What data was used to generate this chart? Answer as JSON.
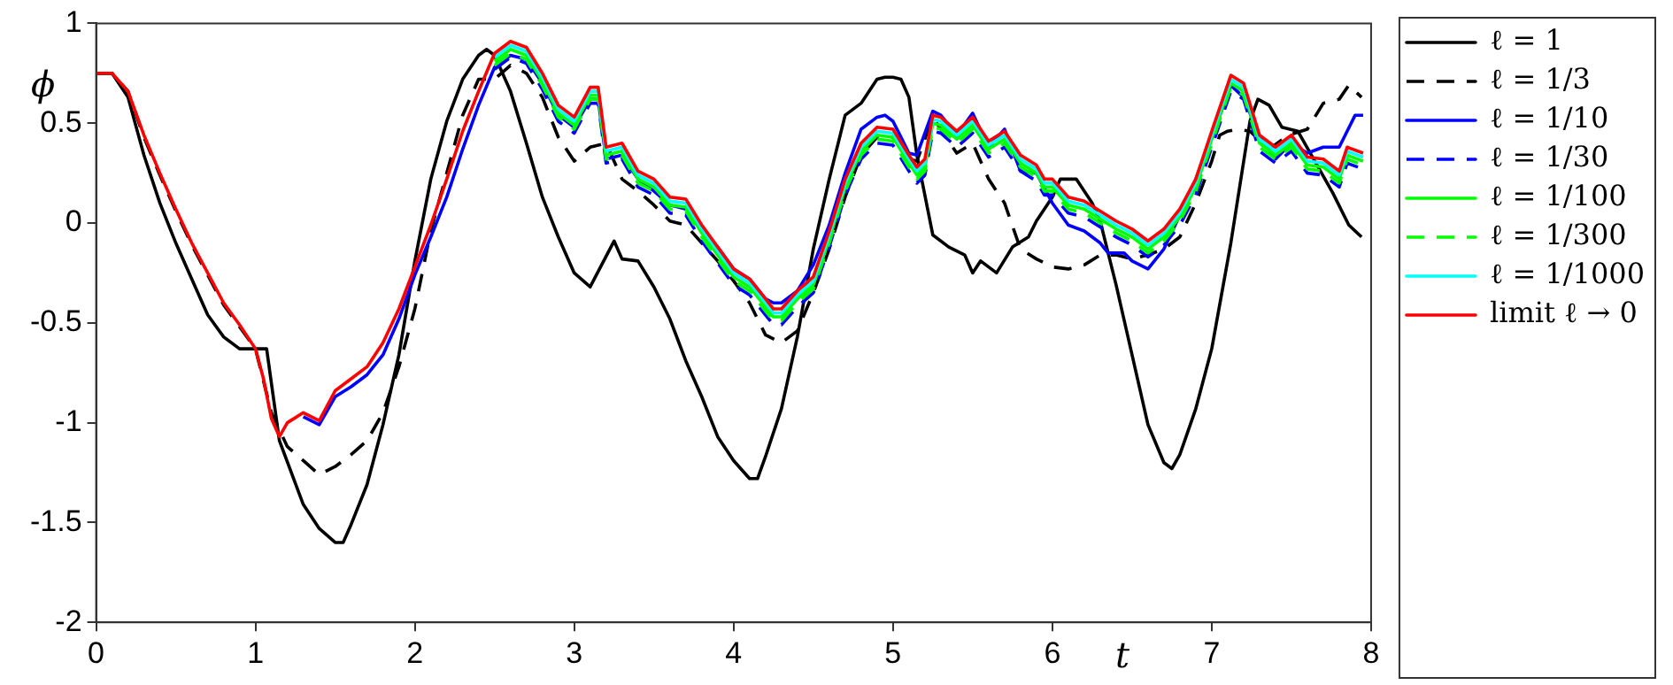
{
  "chart_data": {
    "type": "line",
    "xlabel": "t",
    "ylabel": "ϕ",
    "xlim": [
      0,
      8
    ],
    "xticks": [
      0,
      1,
      2,
      3,
      4,
      5,
      6,
      7,
      8
    ],
    "ylim": [
      -2,
      1
    ],
    "yticks": [
      -2,
      -1.5,
      -1,
      -0.5,
      0,
      0.5,
      1
    ],
    "grid": false,
    "legend": "top right",
    "marker": "none",
    "series": [
      {
        "name": "ℓ = 1",
        "color": "#000000",
        "line_style": "solid",
        "x": [
          0,
          0.1,
          0.2,
          0.3,
          0.4,
          0.5,
          0.6,
          0.7,
          0.8,
          0.9,
          1.0,
          1.07,
          1.15,
          1.3,
          1.4,
          1.5,
          1.55,
          1.6,
          1.7,
          1.8,
          1.9,
          2.0,
          2.1,
          2.2,
          2.3,
          2.4,
          2.45,
          2.5,
          2.6,
          2.7,
          2.8,
          2.9,
          3.0,
          3.1,
          3.25,
          3.3,
          3.4,
          3.5,
          3.6,
          3.7,
          3.8,
          3.9,
          4.0,
          4.1,
          4.15,
          4.2,
          4.3,
          4.4,
          4.5,
          4.6,
          4.7,
          4.8,
          4.9,
          4.95,
          5.0,
          5.05,
          5.1,
          5.15,
          5.25,
          5.35,
          5.45,
          5.5,
          5.55,
          5.65,
          5.75,
          5.85,
          5.9,
          6.0,
          6.05,
          6.15,
          6.25,
          6.3,
          6.4,
          6.5,
          6.6,
          6.7,
          6.75,
          6.8,
          6.9,
          7.0,
          7.12,
          7.24,
          7.29,
          7.36,
          7.44,
          7.54,
          7.64,
          7.76,
          7.86,
          7.94
        ],
        "values": [
          0.75,
          0.75,
          0.63,
          0.34,
          0.1,
          -0.1,
          -0.28,
          -0.46,
          -0.57,
          -0.63,
          -0.63,
          -0.63,
          -1.09,
          -1.41,
          -1.53,
          -1.6,
          -1.6,
          -1.51,
          -1.31,
          -1.01,
          -0.66,
          -0.19,
          0.22,
          0.51,
          0.72,
          0.84,
          0.87,
          0.84,
          0.66,
          0.4,
          0.13,
          -0.07,
          -0.25,
          -0.32,
          -0.09,
          -0.18,
          -0.19,
          -0.32,
          -0.48,
          -0.69,
          -0.87,
          -1.07,
          -1.19,
          -1.28,
          -1.28,
          -1.17,
          -0.93,
          -0.57,
          -0.13,
          0.22,
          0.54,
          0.6,
          0.72,
          0.73,
          0.73,
          0.72,
          0.63,
          0.34,
          -0.06,
          -0.12,
          -0.16,
          -0.25,
          -0.19,
          -0.25,
          -0.12,
          -0.07,
          0.01,
          0.13,
          0.22,
          0.22,
          0.1,
          0.01,
          -0.31,
          -0.66,
          -1.01,
          -1.2,
          -1.23,
          -1.16,
          -0.93,
          -0.63,
          -0.1,
          0.51,
          0.62,
          0.59,
          0.48,
          0.46,
          0.32,
          0.15,
          -0.01,
          -0.07
        ]
      },
      {
        "name": "ℓ = 1/3",
        "color": "#000000",
        "line_style": "dashed",
        "x": [
          0,
          0.1,
          0.2,
          0.3,
          0.4,
          0.5,
          0.6,
          0.7,
          0.8,
          0.9,
          1.0,
          1.1,
          1.2,
          1.3,
          1.4,
          1.5,
          1.6,
          1.7,
          1.8,
          1.9,
          2.0,
          2.1,
          2.2,
          2.3,
          2.4,
          2.5,
          2.6,
          2.7,
          2.8,
          2.9,
          3.0,
          3.1,
          3.2,
          3.3,
          3.4,
          3.5,
          3.6,
          3.7,
          3.8,
          3.9,
          4.0,
          4.1,
          4.2,
          4.3,
          4.4,
          4.5,
          4.6,
          4.7,
          4.8,
          4.9,
          5.0,
          5.1,
          5.15,
          5.25,
          5.3,
          5.4,
          5.5,
          5.6,
          5.7,
          5.8,
          5.9,
          6.0,
          6.1,
          6.2,
          6.3,
          6.4,
          6.5,
          6.6,
          6.7,
          6.8,
          6.9,
          7.0,
          7.05,
          7.1,
          7.16,
          7.24,
          7.36,
          7.48,
          7.6,
          7.7,
          7.8,
          7.86,
          7.94
        ],
        "values": [
          0.75,
          0.75,
          0.66,
          0.43,
          0.24,
          0.06,
          -0.11,
          -0.26,
          -0.41,
          -0.52,
          -0.63,
          -0.95,
          -1.12,
          -1.19,
          -1.26,
          -1.22,
          -1.16,
          -1.09,
          -0.95,
          -0.72,
          -0.43,
          -0.04,
          0.25,
          0.54,
          0.72,
          0.72,
          0.79,
          0.75,
          0.63,
          0.43,
          0.31,
          0.38,
          0.4,
          0.22,
          0.16,
          0.09,
          0.01,
          -0.01,
          -0.1,
          -0.19,
          -0.29,
          -0.4,
          -0.56,
          -0.6,
          -0.54,
          -0.35,
          -0.13,
          0.13,
          0.34,
          0.43,
          0.43,
          0.32,
          0.31,
          0.53,
          0.47,
          0.35,
          0.4,
          0.22,
          0.1,
          -0.13,
          -0.18,
          -0.22,
          -0.23,
          -0.21,
          -0.16,
          -0.16,
          -0.18,
          -0.16,
          -0.13,
          -0.07,
          0.1,
          0.31,
          0.44,
          0.46,
          0.47,
          0.46,
          0.37,
          0.44,
          0.47,
          0.6,
          0.62,
          0.69,
          0.63
        ]
      },
      {
        "name": "ℓ = 1/10",
        "color": "#0000ff",
        "line_style": "solid",
        "x": [
          1.3,
          1.4,
          1.5,
          1.6,
          1.7,
          1.8,
          1.9,
          2.0,
          2.1,
          2.2,
          2.3,
          2.4,
          2.5,
          2.6,
          2.7,
          2.8,
          2.9,
          3.0,
          3.1,
          3.15,
          3.2,
          3.3,
          3.4,
          3.5,
          3.6,
          3.7,
          3.8,
          3.9,
          4.0,
          4.1,
          4.2,
          4.25,
          4.3,
          4.4,
          4.5,
          4.6,
          4.7,
          4.8,
          4.9,
          4.95,
          5.0,
          5.1,
          5.15,
          5.25,
          5.3,
          5.4,
          5.5,
          5.6,
          5.7,
          5.8,
          5.9,
          6.0,
          6.1,
          6.2,
          6.3,
          6.35,
          6.45,
          6.5,
          6.6,
          6.7,
          6.8,
          6.9,
          7.0,
          7.12,
          7.2,
          7.3,
          7.4,
          7.5,
          7.6,
          7.7,
          7.8,
          7.9,
          7.95
        ],
        "values": [
          -0.97,
          -1.01,
          -0.87,
          -0.82,
          -0.76,
          -0.66,
          -0.48,
          -0.26,
          -0.07,
          0.13,
          0.37,
          0.59,
          0.78,
          0.84,
          0.82,
          0.7,
          0.54,
          0.48,
          0.62,
          0.62,
          0.32,
          0.34,
          0.22,
          0.16,
          0.09,
          0.07,
          -0.04,
          -0.12,
          -0.23,
          -0.28,
          -0.38,
          -0.4,
          -0.4,
          -0.34,
          -0.21,
          -0.01,
          0.25,
          0.47,
          0.53,
          0.54,
          0.51,
          0.35,
          0.34,
          0.56,
          0.54,
          0.44,
          0.55,
          0.38,
          0.47,
          0.26,
          0.25,
          0.1,
          -0.01,
          -0.04,
          -0.1,
          -0.15,
          -0.15,
          -0.19,
          -0.23,
          -0.13,
          0.04,
          0.22,
          0.43,
          0.69,
          0.63,
          0.43,
          0.32,
          0.4,
          0.35,
          0.38,
          0.38,
          0.54,
          0.54
        ]
      },
      {
        "name": "ℓ = 1/30",
        "color": "#0000ff",
        "line_style": "dashed",
        "x": [
          2.5,
          2.6,
          2.7,
          2.8,
          2.9,
          3.0,
          3.1,
          3.15,
          3.2,
          3.3,
          3.4,
          3.5,
          3.6,
          3.7,
          3.8,
          3.9,
          4.0,
          4.1,
          4.2,
          4.25,
          4.3,
          4.4,
          4.5,
          4.6,
          4.7,
          4.8,
          4.9,
          5.0,
          5.1,
          5.15,
          5.2,
          5.25,
          5.3,
          5.4,
          5.5,
          5.6,
          5.7,
          5.8,
          5.9,
          5.95,
          6.0,
          6.1,
          6.2,
          6.3,
          6.4,
          6.5,
          6.6,
          6.7,
          6.8,
          6.9,
          7.0,
          7.12,
          7.2,
          7.3,
          7.4,
          7.5,
          7.6,
          7.7,
          7.8,
          7.85,
          7.95
        ],
        "values": [
          0.77,
          0.83,
          0.8,
          0.67,
          0.51,
          0.45,
          0.6,
          0.6,
          0.3,
          0.32,
          0.18,
          0.14,
          0.05,
          0.04,
          -0.09,
          -0.2,
          -0.31,
          -0.36,
          -0.46,
          -0.51,
          -0.51,
          -0.42,
          -0.35,
          -0.12,
          0.14,
          0.32,
          0.4,
          0.39,
          0.26,
          0.2,
          0.24,
          0.46,
          0.45,
          0.38,
          0.45,
          0.33,
          0.38,
          0.26,
          0.21,
          0.14,
          0.14,
          0.05,
          0.03,
          -0.02,
          -0.07,
          -0.11,
          -0.17,
          -0.11,
          -0.01,
          0.14,
          0.38,
          0.66,
          0.62,
          0.36,
          0.3,
          0.36,
          0.25,
          0.24,
          0.18,
          0.3,
          0.27
        ]
      },
      {
        "name": "ℓ = 1/100",
        "color": "#00ff00",
        "line_style": "solid",
        "x": [
          2.5,
          2.6,
          2.7,
          2.8,
          2.9,
          3.0,
          3.1,
          3.15,
          3.2,
          3.3,
          3.4,
          3.5,
          3.6,
          3.7,
          3.8,
          3.9,
          4.0,
          4.1,
          4.2,
          4.25,
          4.3,
          4.4,
          4.5,
          4.6,
          4.7,
          4.8,
          4.9,
          5.0,
          5.1,
          5.15,
          5.2,
          5.25,
          5.3,
          5.4,
          5.5,
          5.6,
          5.7,
          5.8,
          5.9,
          5.95,
          6.0,
          6.1,
          6.2,
          6.3,
          6.4,
          6.5,
          6.6,
          6.7,
          6.8,
          6.9,
          7.0,
          7.12,
          7.2,
          7.3,
          7.4,
          7.5,
          7.6,
          7.7,
          7.8,
          7.85,
          7.95
        ],
        "values": [
          0.81,
          0.87,
          0.84,
          0.71,
          0.55,
          0.49,
          0.64,
          0.64,
          0.34,
          0.36,
          0.22,
          0.18,
          0.09,
          0.08,
          -0.05,
          -0.16,
          -0.27,
          -0.32,
          -0.42,
          -0.47,
          -0.47,
          -0.38,
          -0.31,
          -0.08,
          0.18,
          0.36,
          0.44,
          0.43,
          0.3,
          0.24,
          0.28,
          0.5,
          0.49,
          0.42,
          0.49,
          0.37,
          0.42,
          0.3,
          0.25,
          0.18,
          0.18,
          0.09,
          0.07,
          0.02,
          -0.03,
          -0.07,
          -0.13,
          -0.07,
          0.03,
          0.18,
          0.42,
          0.7,
          0.66,
          0.4,
          0.34,
          0.4,
          0.29,
          0.28,
          0.22,
          0.34,
          0.31
        ]
      },
      {
        "name": "ℓ = 1/300",
        "color": "#00ff00",
        "line_style": "dashed",
        "x": [
          2.5,
          2.6,
          2.7,
          2.8,
          2.9,
          3.0,
          3.1,
          3.15,
          3.2,
          3.3,
          3.4,
          3.5,
          3.6,
          3.7,
          3.8,
          3.9,
          4.0,
          4.1,
          4.2,
          4.25,
          4.3,
          4.4,
          4.5,
          4.6,
          4.7,
          4.8,
          4.9,
          5.0,
          5.1,
          5.15,
          5.2,
          5.25,
          5.3,
          5.4,
          5.5,
          5.6,
          5.7,
          5.8,
          5.9,
          5.95,
          6.0,
          6.1,
          6.2,
          6.3,
          6.4,
          6.5,
          6.6,
          6.7,
          6.8,
          6.9,
          7.0,
          7.12,
          7.2,
          7.3,
          7.4,
          7.5,
          7.6,
          7.7,
          7.8,
          7.85,
          7.95
        ],
        "values": [
          0.79,
          0.85,
          0.82,
          0.69,
          0.53,
          0.47,
          0.62,
          0.62,
          0.32,
          0.34,
          0.2,
          0.16,
          0.07,
          0.06,
          -0.07,
          -0.18,
          -0.29,
          -0.34,
          -0.44,
          -0.49,
          -0.49,
          -0.4,
          -0.33,
          -0.1,
          0.16,
          0.34,
          0.42,
          0.41,
          0.28,
          0.22,
          0.26,
          0.48,
          0.47,
          0.4,
          0.47,
          0.35,
          0.4,
          0.28,
          0.23,
          0.16,
          0.16,
          0.07,
          0.05,
          0,
          -0.05,
          -0.09,
          -0.15,
          -0.09,
          0.01,
          0.16,
          0.4,
          0.68,
          0.64,
          0.38,
          0.32,
          0.38,
          0.27,
          0.26,
          0.2,
          0.32,
          0.29
        ]
      },
      {
        "name": "ℓ = 1/1000",
        "color": "#00ffff",
        "line_style": "solid",
        "x": [
          2.5,
          2.6,
          2.7,
          2.8,
          2.9,
          3.0,
          3.1,
          3.15,
          3.2,
          3.3,
          3.4,
          3.5,
          3.6,
          3.7,
          3.8,
          3.9,
          4.0,
          4.1,
          4.2,
          4.25,
          4.3,
          4.4,
          4.5,
          4.6,
          4.7,
          4.8,
          4.9,
          5.0,
          5.1,
          5.15,
          5.2,
          5.25,
          5.3,
          5.4,
          5.5,
          5.6,
          5.7,
          5.8,
          5.9,
          5.95,
          6.0,
          6.1,
          6.2,
          6.3,
          6.4,
          6.5,
          6.6,
          6.7,
          6.8,
          6.9,
          7.0,
          7.12,
          7.2,
          7.3,
          7.4,
          7.5,
          7.6,
          7.7,
          7.8,
          7.85,
          7.95
        ],
        "values": [
          0.83,
          0.89,
          0.86,
          0.73,
          0.57,
          0.51,
          0.66,
          0.66,
          0.36,
          0.38,
          0.24,
          0.2,
          0.11,
          0.1,
          -0.03,
          -0.14,
          -0.25,
          -0.3,
          -0.4,
          -0.45,
          -0.45,
          -0.36,
          -0.29,
          -0.06,
          0.2,
          0.38,
          0.46,
          0.45,
          0.32,
          0.26,
          0.3,
          0.52,
          0.51,
          0.44,
          0.51,
          0.39,
          0.44,
          0.32,
          0.27,
          0.2,
          0.2,
          0.11,
          0.09,
          0.04,
          -0.01,
          -0.05,
          -0.11,
          -0.05,
          0.05,
          0.2,
          0.44,
          0.72,
          0.68,
          0.42,
          0.36,
          0.42,
          0.31,
          0.3,
          0.24,
          0.36,
          0.33
        ]
      },
      {
        "name": "limit ℓ → 0",
        "color": "#ff0000",
        "line_style": "solid",
        "x": [
          0,
          0.1,
          0.2,
          0.3,
          0.4,
          0.5,
          0.6,
          0.7,
          0.8,
          0.9,
          1.0,
          1.05,
          1.1,
          1.15,
          1.2,
          1.3,
          1.4,
          1.5,
          1.6,
          1.7,
          1.8,
          1.9,
          2.0,
          2.1,
          2.2,
          2.3,
          2.4,
          2.5,
          2.6,
          2.7,
          2.8,
          2.9,
          3.0,
          3.1,
          3.15,
          3.2,
          3.3,
          3.4,
          3.5,
          3.6,
          3.7,
          3.8,
          3.9,
          4.0,
          4.1,
          4.2,
          4.25,
          4.3,
          4.4,
          4.5,
          4.6,
          4.7,
          4.8,
          4.9,
          5.0,
          5.1,
          5.15,
          5.2,
          5.25,
          5.3,
          5.4,
          5.5,
          5.6,
          5.7,
          5.8,
          5.9,
          5.95,
          6.0,
          6.1,
          6.2,
          6.3,
          6.4,
          6.5,
          6.6,
          6.7,
          6.8,
          6.9,
          7.0,
          7.12,
          7.2,
          7.3,
          7.4,
          7.5,
          7.6,
          7.7,
          7.8,
          7.85,
          7.95
        ],
        "values": [
          0.75,
          0.75,
          0.66,
          0.44,
          0.25,
          0.07,
          -0.1,
          -0.25,
          -0.4,
          -0.51,
          -0.63,
          -0.78,
          -0.98,
          -1.07,
          -1.0,
          -0.95,
          -0.99,
          -0.84,
          -0.78,
          -0.72,
          -0.6,
          -0.43,
          -0.22,
          -0.01,
          0.22,
          0.46,
          0.66,
          0.85,
          0.91,
          0.88,
          0.75,
          0.59,
          0.53,
          0.68,
          0.68,
          0.38,
          0.4,
          0.26,
          0.22,
          0.13,
          0.12,
          -0.01,
          -0.12,
          -0.23,
          -0.28,
          -0.38,
          -0.43,
          -0.43,
          -0.34,
          -0.27,
          -0.04,
          0.22,
          0.4,
          0.48,
          0.47,
          0.34,
          0.28,
          0.32,
          0.54,
          0.53,
          0.46,
          0.53,
          0.41,
          0.46,
          0.34,
          0.29,
          0.22,
          0.22,
          0.13,
          0.11,
          0.06,
          0.01,
          -0.03,
          -0.09,
          -0.03,
          0.07,
          0.22,
          0.46,
          0.74,
          0.7,
          0.44,
          0.38,
          0.44,
          0.33,
          0.32,
          0.26,
          0.38,
          0.35
        ]
      }
    ]
  }
}
